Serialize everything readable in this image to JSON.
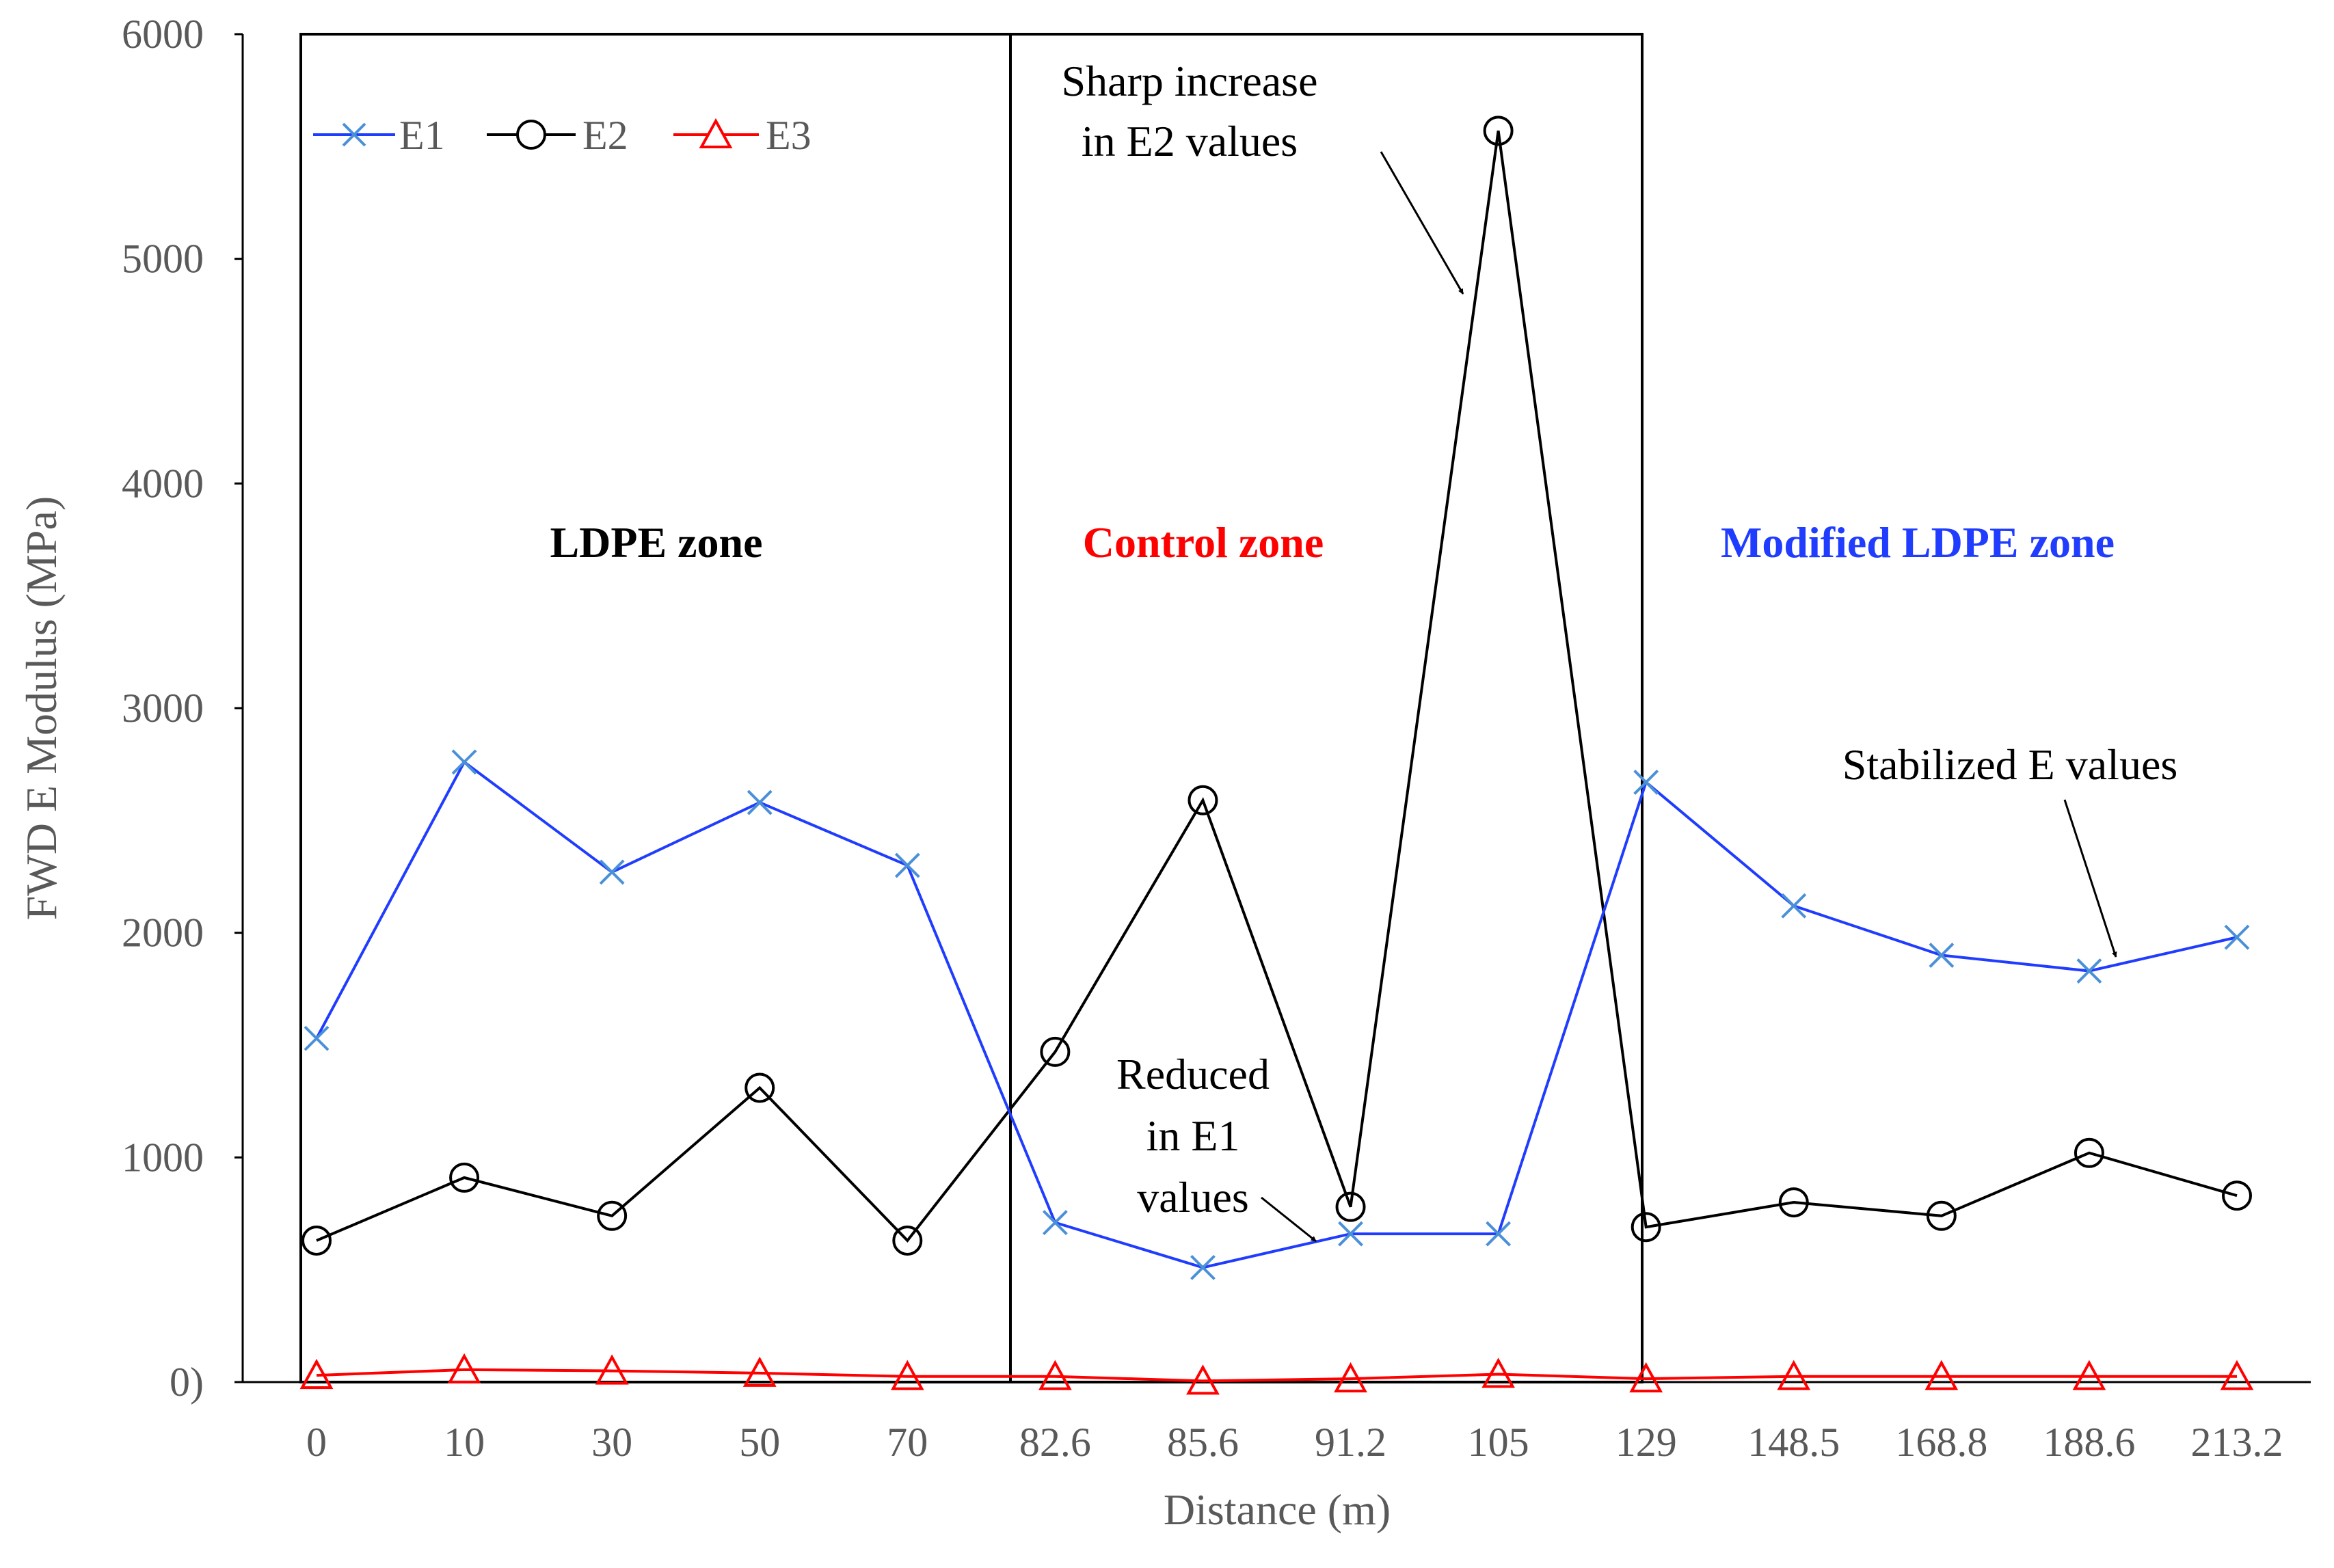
{
  "chart_data": {
    "type": "line",
    "title": "",
    "xlabel": "Distance (m)",
    "ylabel": "FWD E Modulus (MPa)",
    "ylim": [
      0,
      6000
    ],
    "yticks": [
      "0",
      "1000",
      "2000",
      "3000",
      "4000",
      "5000",
      "6000"
    ],
    "zero_tick_label": "0)",
    "categories": [
      "0",
      "10",
      "30",
      "50",
      "70",
      "82.6",
      "85.6",
      "91.2",
      "105",
      "129",
      "148.5",
      "168.8",
      "188.6",
      "213.2"
    ],
    "series": [
      {
        "name": "E1",
        "color": "#1f3cff",
        "marker": "x",
        "marker_color": "#4a90d9",
        "values": [
          1530,
          2760,
          2270,
          2580,
          2300,
          710,
          510,
          660,
          660,
          2670,
          2120,
          1900,
          1830,
          1980
        ]
      },
      {
        "name": "E2",
        "color": "#000000",
        "marker": "circle",
        "marker_color": "#000000",
        "values": [
          630,
          910,
          740,
          1310,
          630,
          1470,
          2590,
          780,
          5570,
          690,
          800,
          740,
          1020,
          830
        ]
      },
      {
        "name": "E3",
        "color": "#ff0000",
        "marker": "triangle",
        "marker_color": "#ff0000",
        "values": [
          30,
          55,
          50,
          40,
          25,
          25,
          5,
          15,
          35,
          15,
          25,
          25,
          25,
          25
        ]
      }
    ],
    "zones": [
      {
        "label": "LDPE zone",
        "color": "#000000"
      },
      {
        "label": "Control zone",
        "color": "#ff0000"
      },
      {
        "label": "Modified LDPE zone",
        "color": "#1f3cff"
      }
    ],
    "annotations": [
      {
        "lines": [
          "Sharp increase",
          "in E2 values"
        ]
      },
      {
        "lines": [
          "Reduced",
          "in E1",
          "values"
        ]
      },
      {
        "lines": [
          "Stabilized E values"
        ]
      }
    ],
    "grid": false,
    "legend_position": "top-left"
  }
}
